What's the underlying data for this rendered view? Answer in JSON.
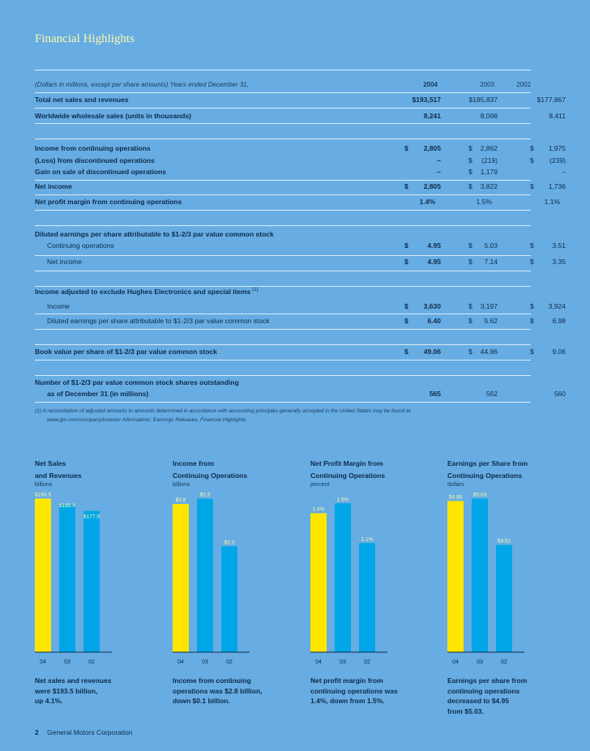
{
  "page_title": "Financial Highlights",
  "table": {
    "header": {
      "label": "(Dollars in millions, except per share amounts) Years ended December 31,",
      "y2004": "2004",
      "y2003": "2003",
      "y2002": "2002"
    },
    "rows": [
      {
        "label": "Total net sales and revenues",
        "v2004": "$193,517",
        "v2003": "$185,837",
        "v2002": "$177,867"
      },
      {
        "label": "Worldwide wholesale sales (units in thousands)",
        "v2004": "8,241",
        "v2003": "8,098",
        "v2002": "8,411"
      },
      {
        "label": "Income from continuing operations",
        "s2004": "$",
        "v2004": "2,805",
        "s2003": "$",
        "v2003": "2,862",
        "s2002": "$",
        "v2002": "1,975"
      },
      {
        "label": "(Loss) from discontinued operations",
        "v2004": "–",
        "s2003": "$",
        "v2003": "(219)",
        "s2002": "$",
        "v2002": "(239)"
      },
      {
        "label": "Gain on sale of discontinued operations",
        "v2004": "–",
        "s2003": "$",
        "v2003": "1,179",
        "v2002": "–"
      },
      {
        "label": "Net income",
        "s2004": "$",
        "v2004": "2,805",
        "s2003": "$",
        "v2003": "3,822",
        "s2002": "$",
        "v2002": "1,736"
      },
      {
        "label": "Net profit margin from continuing operations",
        "v2004": "1.4%",
        "v2003": "1.5%",
        "v2002": "1.1%"
      },
      {
        "label": "Diluted earnings per share attributable to $1-2/3 par value common stock"
      },
      {
        "label": "Continuing operations",
        "s2004": "$",
        "v2004": "4.95",
        "s2003": "$",
        "v2003": "5.03",
        "s2002": "$",
        "v2002": "3.51"
      },
      {
        "label": "Net income",
        "s2004": "$",
        "v2004": "4.95",
        "s2003": "$",
        "v2003": "7.14",
        "s2002": "$",
        "v2002": "3.35"
      },
      {
        "label": "Income adjusted to exclude Hughes Electronics and special items",
        "sup": "(1)"
      },
      {
        "label": "Income",
        "s2004": "$",
        "v2004": "3,630",
        "s2003": "$",
        "v2003": "3,197",
        "s2002": "$",
        "v2002": "3,924"
      },
      {
        "label": "Diluted earnings per share attributable to $1-2/3 par value common stock",
        "s2004": "$",
        "v2004": "6.40",
        "s2003": "$",
        "v2003": "5.62",
        "s2002": "$",
        "v2002": "6.98"
      },
      {
        "label": "Book value per share of $1-2/3 par value common stock",
        "s2004": "$",
        "v2004": "49.06",
        "s2003": "$",
        "v2003": "44.96",
        "s2002": "$",
        "v2002": "9.06"
      },
      {
        "label": "Number of $1-2/3 par value common stock shares outstanding"
      },
      {
        "label": "as of December 31 (in millions)",
        "v2004": "565",
        "v2003": "562",
        "v2002": "560"
      }
    ]
  },
  "footnote": {
    "line1": "(1)  A reconciliation of adjusted amounts to amounts determined in accordance with accounting principles generally accepted in the United States may be found at",
    "line2": "www.gm.com/company/investor information/, Earnings Releases, Financial Highlights."
  },
  "chart_data": [
    {
      "type": "bar",
      "title_line1": "Net Sales",
      "title_line2": "and Revenues",
      "unit": "billions",
      "categories": [
        "04",
        "03",
        "02"
      ],
      "values": [
        193.5,
        185.8,
        177.9
      ],
      "labels": [
        "$193.5",
        "$185.8",
        "$177.9"
      ],
      "ylim": [
        0,
        200
      ],
      "caption": [
        "Net sales and revenues",
        "were $193.5 billion,",
        "up 4.1%."
      ]
    },
    {
      "type": "bar",
      "title_line1": "Income from",
      "title_line2": "Continuing Operations",
      "unit": "billions",
      "categories": [
        "04",
        "03",
        "02"
      ],
      "values": [
        2.8,
        2.9,
        2.0
      ],
      "labels": [
        "$2.8",
        "$2.9",
        "$2.0"
      ],
      "ylim": [
        0,
        3.0
      ],
      "caption": [
        "Income from continuing",
        "operations was $2.8 billion,",
        "down $0.1 billion."
      ]
    },
    {
      "type": "bar",
      "title_line1": "Net Profit Margin from",
      "title_line2": "Continuing Operations",
      "unit": "percent",
      "categories": [
        "04",
        "03",
        "02"
      ],
      "values": [
        1.4,
        1.5,
        1.1
      ],
      "labels": [
        "1.4%",
        "1.5%",
        "1.1%"
      ],
      "ylim": [
        0,
        1.6
      ],
      "caption": [
        "Net profit margin from",
        "continuing operations was",
        "1.4%, down from 1.5%."
      ]
    },
    {
      "type": "bar",
      "title_line1": "Earnings per Share from",
      "title_line2": "Continuing Operations",
      "unit": "dollars",
      "categories": [
        "04",
        "03",
        "02"
      ],
      "values": [
        4.95,
        5.03,
        3.51
      ],
      "labels": [
        "$4.95",
        "$5.03",
        "$3.51"
      ],
      "ylim": [
        0,
        5.2
      ],
      "caption": [
        "Earnings per share from",
        "continuing operations",
        "decreased to $4.95",
        "from $5.03."
      ]
    }
  ],
  "colors": {
    "highlight_bar": "#ffe600",
    "bar": "#00a6e8",
    "background": "#67ade3"
  },
  "footer": {
    "page_number": "2",
    "company": "General Motors Corporation"
  }
}
